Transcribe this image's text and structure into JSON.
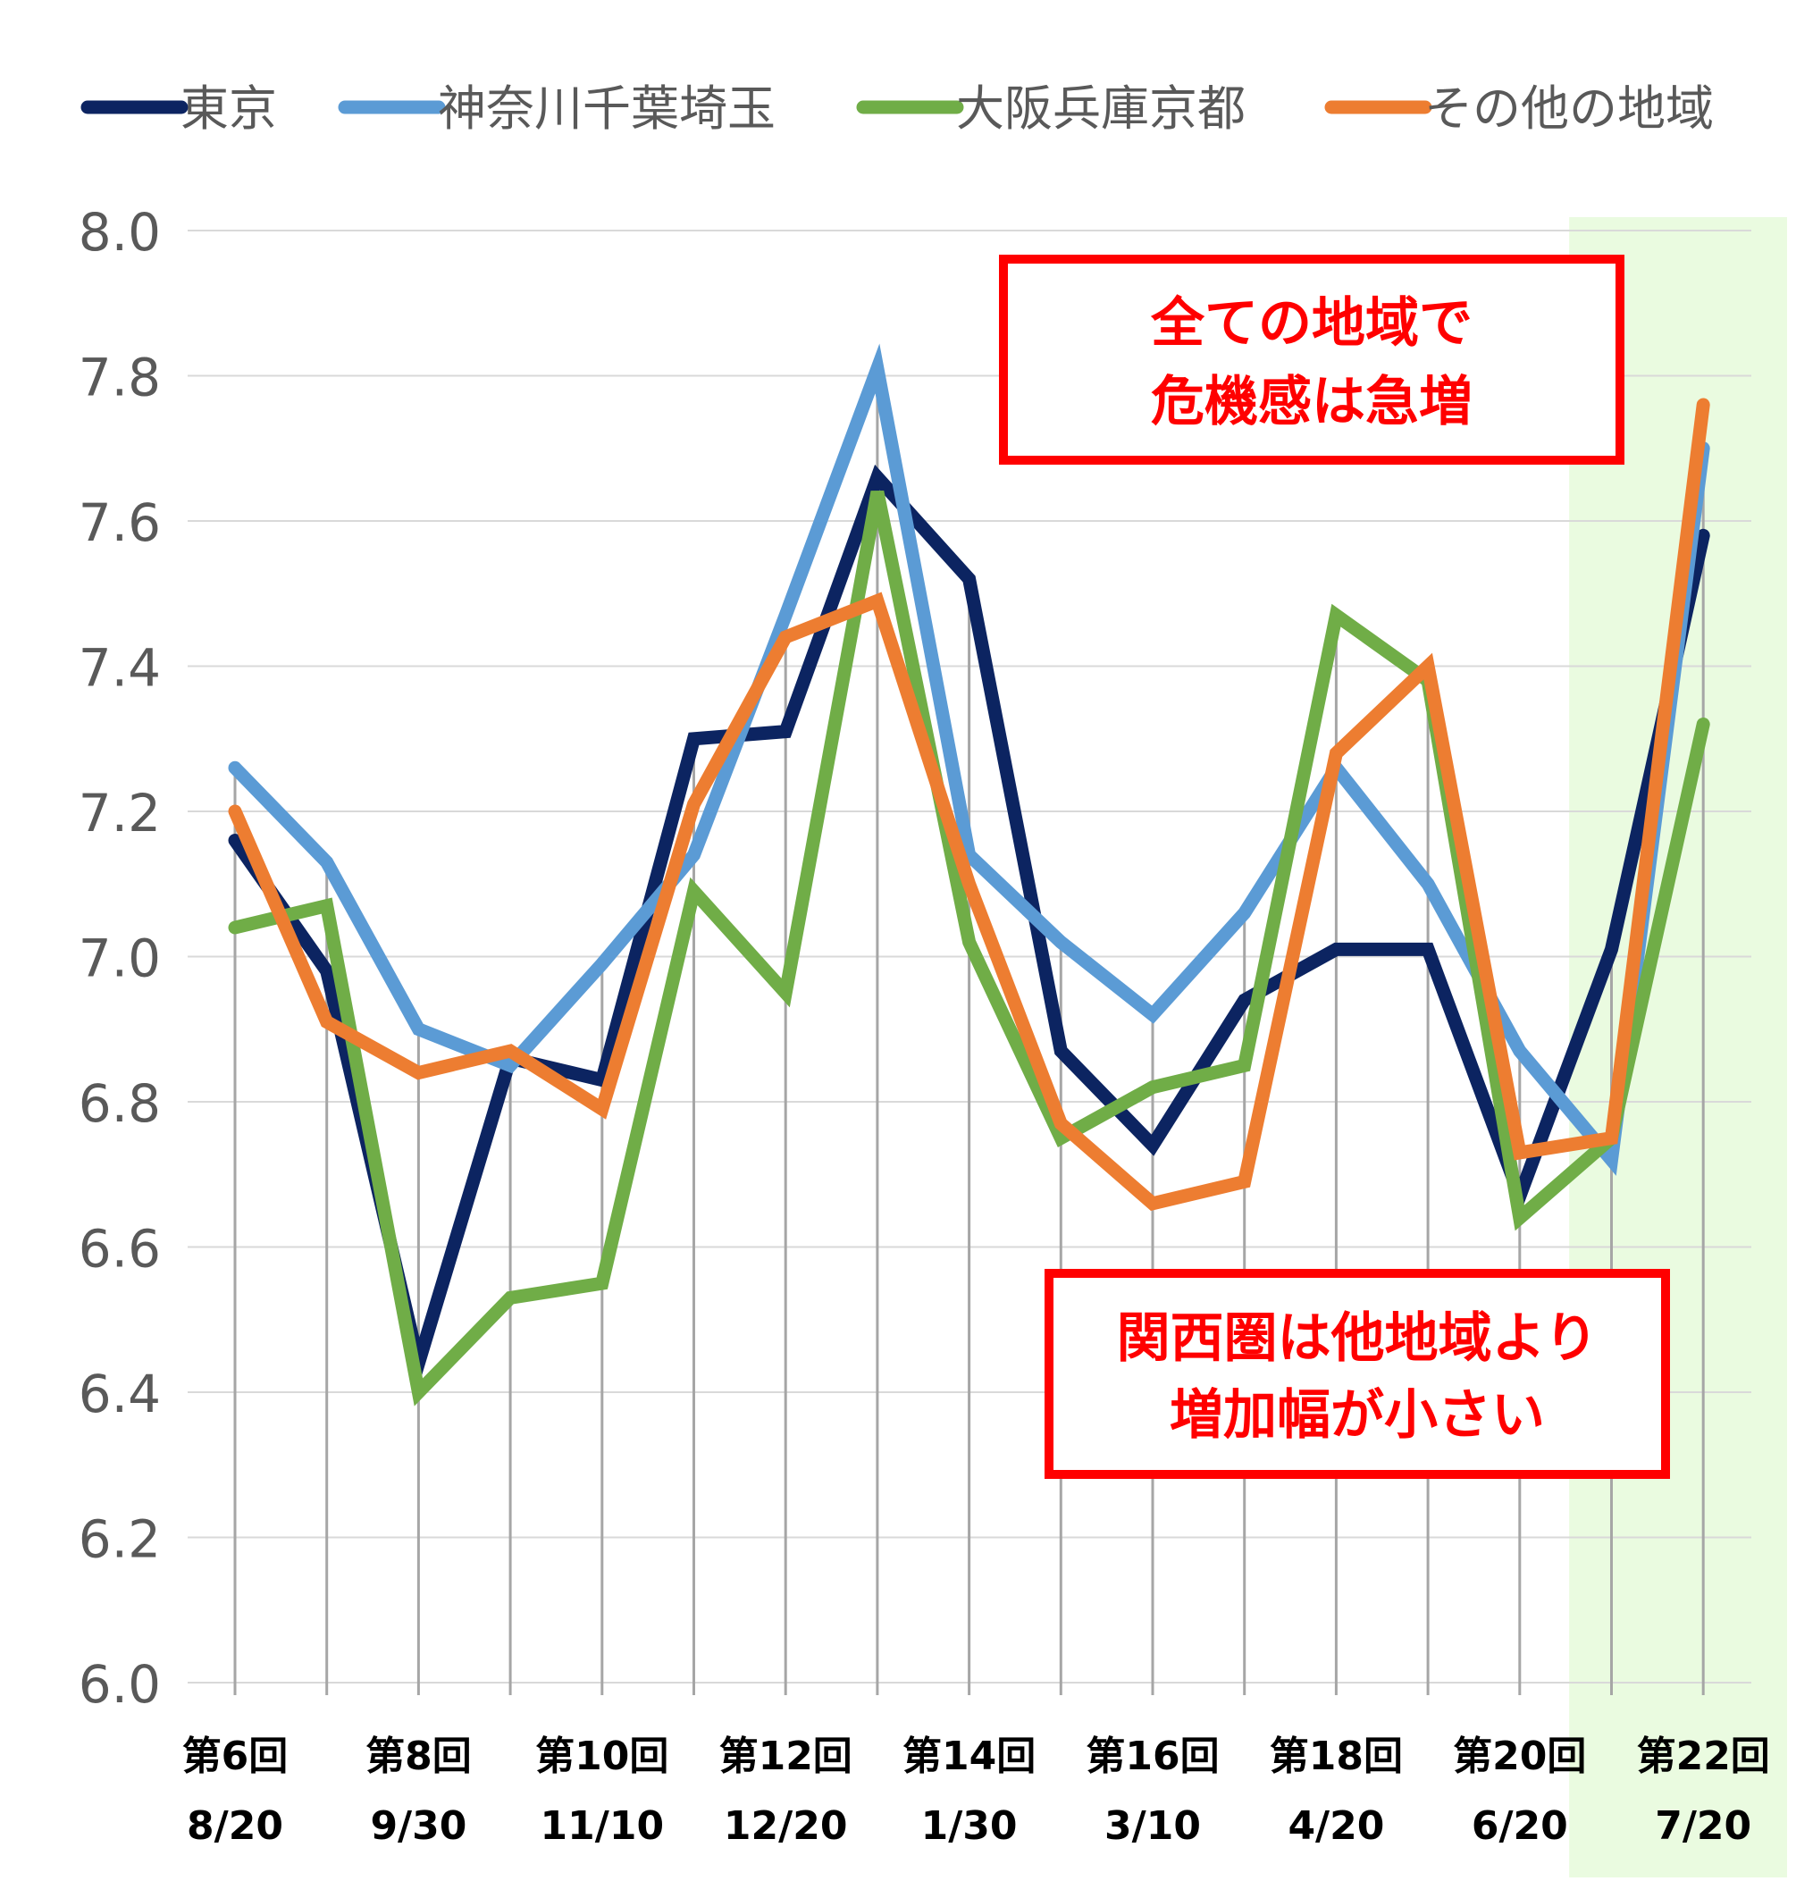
{
  "chart_data": {
    "type": "line",
    "title": "",
    "xlabel": "",
    "ylabel": "",
    "ylim": [
      6.0,
      8.0
    ],
    "y_ticks": [
      "8.0",
      "7.8",
      "7.6",
      "7.4",
      "7.2",
      "7.0",
      "6.8",
      "6.6",
      "6.4",
      "6.2",
      "6.0"
    ],
    "grid": "horizontal and vertical",
    "legend_position": "top",
    "highlight_region": {
      "from_point": 15,
      "to_point": 17,
      "color": "#eafbe0"
    },
    "x_tick_labels": [
      {
        "index": 0,
        "round": "第6回",
        "date": "8/20"
      },
      {
        "index": 2,
        "round": "第8回",
        "date": "9/30"
      },
      {
        "index": 4,
        "round": "第10回",
        "date": "11/10"
      },
      {
        "index": 6,
        "round": "第12回",
        "date": "12/20"
      },
      {
        "index": 8,
        "round": "第14回",
        "date": "1/30"
      },
      {
        "index": 10,
        "round": "第16回",
        "date": "3/10"
      },
      {
        "index": 12,
        "round": "第18回",
        "date": "4/20"
      },
      {
        "index": 14,
        "round": "第20回",
        "date": "6/20"
      },
      {
        "index": 16,
        "round": "第22回",
        "date": "7/20"
      }
    ],
    "series": [
      {
        "name": "東京",
        "color": "#0c2461",
        "values": [
          7.16,
          6.98,
          6.44,
          6.86,
          6.83,
          7.3,
          7.31,
          7.66,
          7.52,
          6.87,
          6.74,
          6.94,
          7.01,
          7.01,
          6.67,
          7.01,
          7.58
        ]
      },
      {
        "name": "神奈川千葉埼玉",
        "color": "#5b9bd5",
        "values": [
          7.26,
          7.13,
          6.9,
          6.85,
          6.99,
          7.14,
          7.47,
          7.81,
          7.14,
          7.02,
          6.92,
          7.06,
          7.26,
          7.1,
          6.87,
          6.72,
          7.7
        ]
      },
      {
        "name": "大阪兵庫京都",
        "color": "#70ad47",
        "values": [
          7.04,
          7.07,
          6.4,
          6.53,
          6.55,
          7.09,
          6.95,
          7.64,
          7.02,
          6.75,
          6.82,
          6.85,
          7.47,
          7.38,
          6.64,
          6.75,
          7.32
        ]
      },
      {
        "name": "その他の地域",
        "color": "#ed7d31",
        "values": [
          7.2,
          6.91,
          6.84,
          6.87,
          6.79,
          7.21,
          7.44,
          7.49,
          7.1,
          6.77,
          6.66,
          6.69,
          7.28,
          7.4,
          6.73,
          6.75,
          7.76
        ]
      }
    ],
    "annotations": [
      {
        "lines": [
          "全ての地域で",
          "危機感は急増"
        ],
        "color": "#ff0000"
      },
      {
        "lines": [
          "関西圏は他地域より",
          "増加幅が小さい"
        ],
        "color": "#ff0000"
      }
    ]
  }
}
